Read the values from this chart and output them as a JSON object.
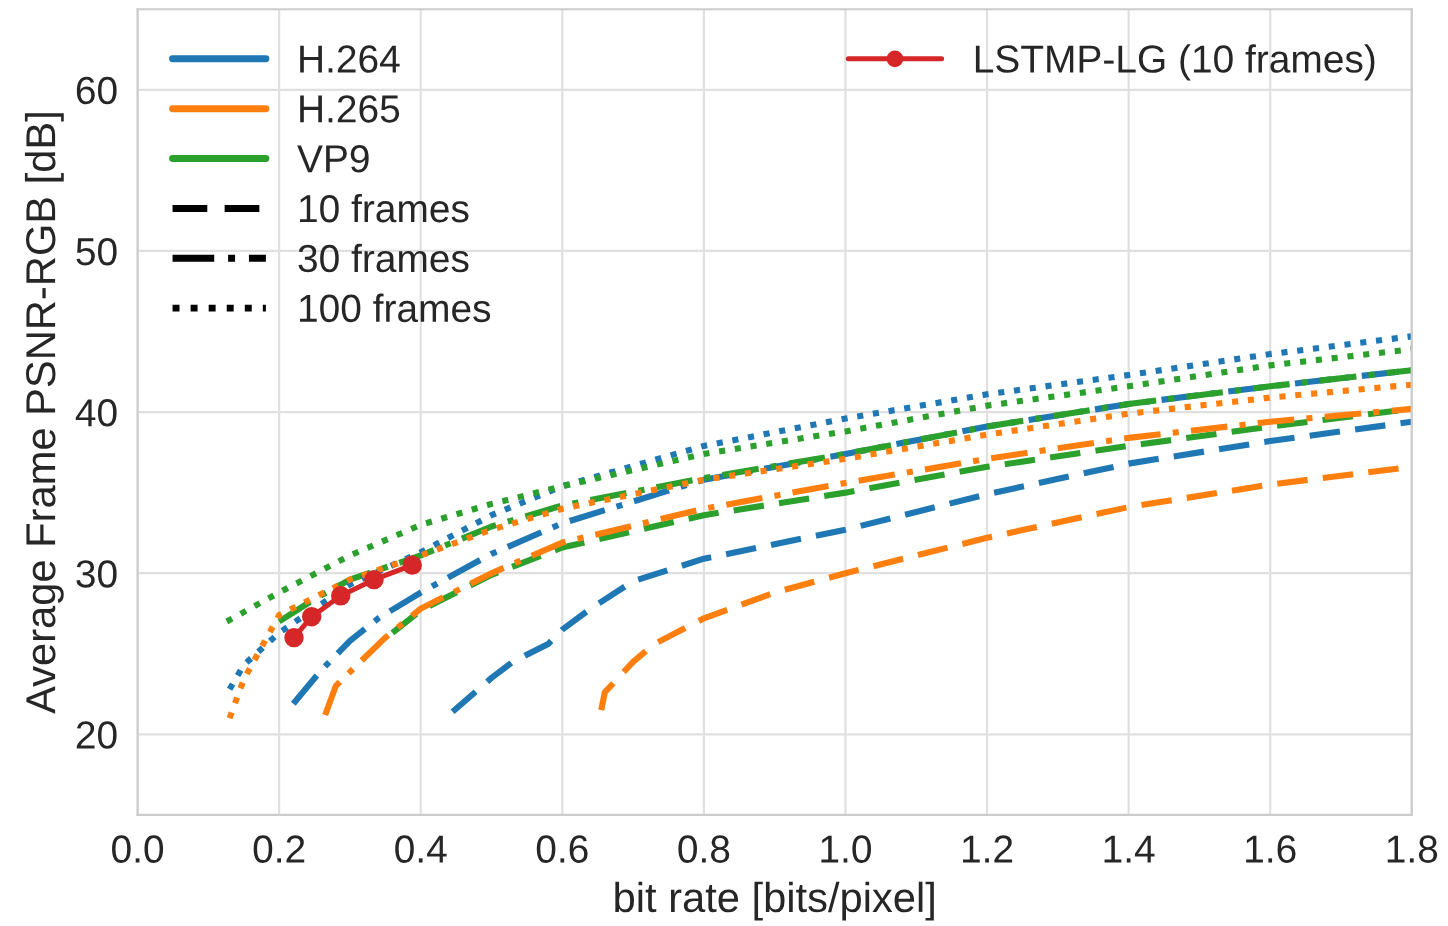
{
  "chart_data": {
    "type": "line",
    "xlabel": "bit rate [bits/pixel]",
    "ylabel": "Average Frame PSNR-RGB [dB]",
    "xlim": [
      0.0,
      1.8
    ],
    "ylim": [
      15,
      65
    ],
    "xticks": [
      {
        "value": 0.0,
        "label": "0.0"
      },
      {
        "value": 0.2,
        "label": "0.2"
      },
      {
        "value": 0.4,
        "label": "0.4"
      },
      {
        "value": 0.6,
        "label": "0.6"
      },
      {
        "value": 0.8,
        "label": "0.8"
      },
      {
        "value": 1.0,
        "label": "1.0"
      },
      {
        "value": 1.2,
        "label": "1.2"
      },
      {
        "value": 1.4,
        "label": "1.4"
      },
      {
        "value": 1.6,
        "label": "1.6"
      },
      {
        "value": 1.8,
        "label": "1.8"
      }
    ],
    "yticks": [
      20,
      30,
      40,
      50,
      60
    ],
    "grid": true,
    "legend": "top left",
    "marker": "none",
    "series": [
      {
        "name": "H.264",
        "color": "#1f77b4",
        "line_style": "solid"
      },
      {
        "name": "H.265",
        "color": "#ff7f0e",
        "line_style": "solid"
      },
      {
        "name": "VP9",
        "color": "#2ca02c",
        "line_style": "solid"
      },
      {
        "name": "10 frames",
        "color": "#000000",
        "line_style": "dashed"
      },
      {
        "name": "30 frames",
        "color": "#000000",
        "line_style": "dashdot"
      },
      {
        "name": "100 frames",
        "color": "#000000",
        "line_style": "dotted"
      },
      {
        "color": "#1f77b4",
        "line_style": "dashed",
        "x": [
          0.445,
          0.5,
          0.53,
          0.58,
          0.6,
          0.64,
          0.7,
          0.8,
          1.0,
          1.2,
          1.4,
          1.6,
          1.8
        ],
        "values": [
          21.4,
          23.5,
          24.5,
          25.6,
          26.5,
          27.8,
          29.5,
          30.9,
          32.7,
          34.9,
          36.8,
          38.2,
          39.4
        ]
      },
      {
        "color": "#ff7f0e",
        "line_style": "dashed",
        "x": [
          0.655,
          0.66,
          0.7,
          0.73,
          0.8,
          0.9,
          1.0,
          1.2,
          1.4,
          1.6,
          1.8
        ],
        "values": [
          21.5,
          22.6,
          24.5,
          25.6,
          27.2,
          28.8,
          30.0,
          32.2,
          34.1,
          35.5,
          36.6
        ]
      },
      {
        "color": "#2ca02c",
        "line_style": "dashed",
        "x": [
          0.36,
          0.4,
          0.5,
          0.6,
          0.8,
          1.0,
          1.2,
          1.4,
          1.6,
          1.8
        ],
        "values": [
          26.3,
          27.7,
          29.9,
          31.6,
          33.6,
          35.0,
          36.6,
          37.9,
          39.1,
          40.2
        ]
      },
      {
        "color": "#1f77b4",
        "line_style": "dashdot",
        "x": [
          0.22,
          0.26,
          0.3,
          0.34,
          0.4,
          0.5,
          0.6,
          0.8,
          1.0,
          1.2,
          1.4,
          1.6,
          1.8
        ],
        "values": [
          21.9,
          24.0,
          25.8,
          27.2,
          28.8,
          31.2,
          33.1,
          35.8,
          37.4,
          39.1,
          40.5,
          41.6,
          42.6
        ]
      },
      {
        "color": "#ff7f0e",
        "line_style": "dashdot",
        "x": [
          0.265,
          0.28,
          0.31,
          0.35,
          0.4,
          0.5,
          0.6,
          0.8,
          1.0,
          1.2,
          1.4,
          1.6,
          1.8
        ],
        "values": [
          21.2,
          23.0,
          24.3,
          26.0,
          27.8,
          30.0,
          31.9,
          34.0,
          35.6,
          37.1,
          38.4,
          39.4,
          40.2
        ]
      },
      {
        "color": "#2ca02c",
        "line_style": "dashdot",
        "x": [
          0.2,
          0.25,
          0.3,
          0.4,
          0.5,
          0.6,
          0.8,
          1.0,
          1.2,
          1.4,
          1.6,
          1.8
        ],
        "values": [
          27.0,
          28.4,
          29.6,
          31.1,
          32.9,
          34.2,
          35.9,
          37.4,
          39.1,
          40.5,
          41.6,
          42.6
        ]
      },
      {
        "color": "#1f77b4",
        "line_style": "dotted",
        "x": [
          0.13,
          0.15,
          0.2,
          0.3,
          0.4,
          0.5,
          0.6,
          0.8,
          1.0,
          1.2,
          1.4,
          1.6,
          1.8
        ],
        "values": [
          22.8,
          24.3,
          26.3,
          29.3,
          31.3,
          33.6,
          35.4,
          37.9,
          39.6,
          41.1,
          42.3,
          43.6,
          44.7
        ]
      },
      {
        "color": "#ff7f0e",
        "line_style": "dotted",
        "x": [
          0.13,
          0.15,
          0.2,
          0.3,
          0.4,
          0.5,
          0.6,
          0.8,
          1.0,
          1.2,
          1.4,
          1.6,
          1.8
        ],
        "values": [
          21.0,
          23.4,
          27.4,
          29.6,
          31.1,
          32.7,
          34.0,
          35.8,
          37.1,
          38.6,
          39.9,
          40.9,
          41.7
        ]
      },
      {
        "color": "#2ca02c",
        "line_style": "dotted",
        "x": [
          0.126,
          0.2,
          0.3,
          0.4,
          0.5,
          0.6,
          0.8,
          1.0,
          1.2,
          1.4,
          1.6,
          1.8
        ],
        "values": [
          27.0,
          28.8,
          31.1,
          33.0,
          34.3,
          35.4,
          37.4,
          38.8,
          40.4,
          41.6,
          42.9,
          43.9
        ]
      },
      {
        "name": "LSTMP-LG (10 frames)",
        "color": "#d62728",
        "line_style": "solid",
        "marker": "circle",
        "x": [
          0.221,
          0.246,
          0.287,
          0.334,
          0.388
        ],
        "values": [
          26.0,
          27.3,
          28.6,
          29.6,
          30.5
        ]
      }
    ]
  }
}
